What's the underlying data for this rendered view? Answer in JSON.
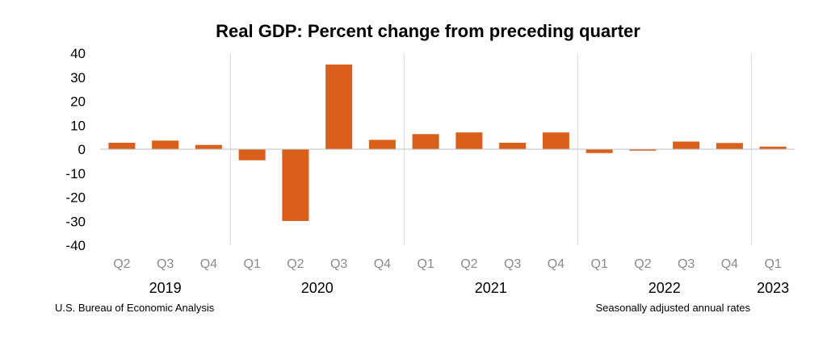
{
  "chart_data": {
    "type": "bar",
    "title": "Real GDP:  Percent change from preceding quarter",
    "categories": [
      "Q2",
      "Q3",
      "Q4",
      "Q1",
      "Q2",
      "Q3",
      "Q4",
      "Q1",
      "Q2",
      "Q3",
      "Q4",
      "Q1",
      "Q2",
      "Q3",
      "Q4",
      "Q1"
    ],
    "years": [
      {
        "label": "2019",
        "start": 0,
        "end": 2
      },
      {
        "label": "2020",
        "start": 3,
        "end": 6
      },
      {
        "label": "2021",
        "start": 7,
        "end": 10
      },
      {
        "label": "2022",
        "start": 11,
        "end": 14
      },
      {
        "label": "2023",
        "start": 15,
        "end": 15
      }
    ],
    "values": [
      2.7,
      3.6,
      1.8,
      -4.6,
      -29.9,
      35.3,
      3.9,
      6.3,
      7.0,
      2.7,
      7.0,
      -1.6,
      -0.6,
      3.2,
      2.6,
      1.1
    ],
    "ylim": [
      -40,
      40
    ],
    "yticks": [
      40,
      30,
      20,
      10,
      0,
      -10,
      -20,
      -30,
      -40
    ],
    "bar_color": "#d95f1a",
    "grid": "vertical year separators",
    "source": "U.S. Bureau of Economic Analysis",
    "note": "Seasonally adjusted annual rates"
  }
}
